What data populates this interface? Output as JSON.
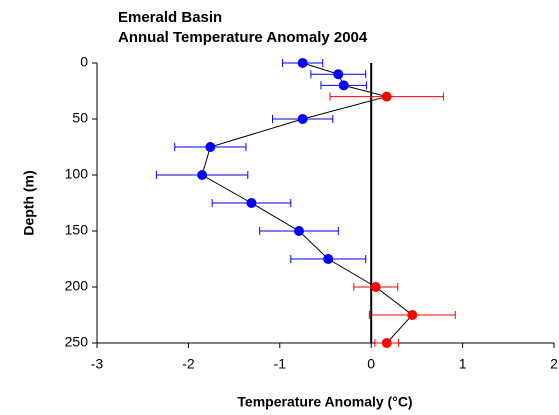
{
  "chart_data": {
    "type": "scatter",
    "title": "Emerald Basin",
    "subtitle": "Annual Temperature Anomaly 2004",
    "x_label": "Temperature Anomaly (°C)",
    "y_label": "Depth (m)",
    "xlim": [
      -3,
      2
    ],
    "xticks": [
      -3,
      -2,
      -1,
      0,
      1,
      2
    ],
    "ylim": [
      0,
      250
    ],
    "yticks": [
      0,
      50,
      100,
      150,
      200,
      250
    ],
    "y_inverted": true,
    "reference_line_x": 0,
    "series": [
      {
        "x": [
          -0.75,
          -0.36,
          -0.3,
          0.17,
          -0.75,
          -1.76,
          -1.85,
          -1.31,
          -0.79,
          -0.47,
          0.05,
          0.45,
          0.17
        ],
        "y": [
          0,
          10,
          20,
          30,
          50,
          75,
          100,
          125,
          150,
          175,
          200,
          225,
          250
        ],
        "xerr": [
          0.22,
          0.3,
          0.25,
          0.62,
          0.33,
          0.39,
          0.5,
          0.43,
          0.43,
          0.41,
          0.24,
          0.47,
          0.13
        ],
        "point_colors": [
          "#0000ff",
          "#0000ff",
          "#0000ff",
          "#ff0000",
          "#0000ff",
          "#0000ff",
          "#0000ff",
          "#0000ff",
          "#0000ff",
          "#0000ff",
          "#ff0000",
          "#ff0000",
          "#ff0000"
        ],
        "line_color": "#000000"
      }
    ]
  }
}
